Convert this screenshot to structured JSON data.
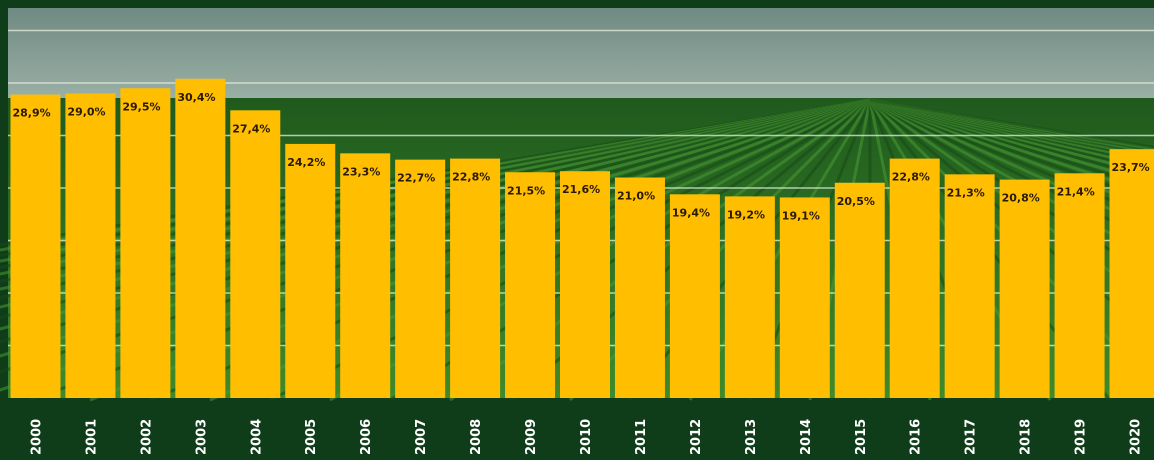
{
  "colors": {
    "bar": "#ffbf00",
    "frame": "#0f3d1a",
    "sky_top": "#6f8a82",
    "sky_bottom": "#9bb0a6",
    "field_dark": "#1f5a1d",
    "field_light": "#3f8a2c",
    "gridline": "#e6efe0",
    "label_text": "#2a1a05",
    "axis_text": "#ffffff"
  },
  "chart_data": {
    "type": "bar",
    "title": "",
    "xlabel": "",
    "ylabel": "",
    "grid": true,
    "ylim": [
      0,
      36
    ],
    "categories": [
      "2000",
      "2001",
      "2002",
      "2003",
      "2004",
      "2005",
      "2006",
      "2007",
      "2008",
      "2009",
      "2010",
      "2011",
      "2012",
      "2013",
      "2014",
      "2015",
      "2016",
      "2017",
      "2018",
      "2019",
      "2020"
    ],
    "values": [
      28.9,
      29.0,
      29.5,
      30.4,
      27.4,
      24.2,
      23.3,
      22.7,
      22.8,
      21.5,
      21.6,
      21.0,
      19.4,
      19.2,
      19.1,
      20.5,
      22.8,
      21.3,
      20.8,
      21.4,
      23.7
    ],
    "value_labels": [
      "28,9%",
      "29,0%",
      "29,5%",
      "30,4%",
      "27,4%",
      "24,2%",
      "23,3%",
      "22,7%",
      "22,8%",
      "21,5%",
      "21,6%",
      "21,0%",
      "19,4%",
      "19,2%",
      "19,1%",
      "20,5%",
      "22,8%",
      "21,3%",
      "20,8%",
      "21,4%",
      "23,7%"
    ]
  }
}
